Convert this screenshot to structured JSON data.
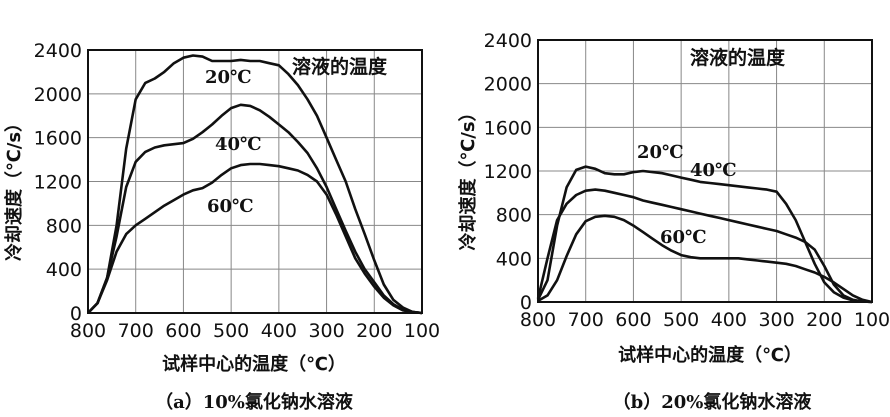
{
  "chart_data": [
    {
      "type": "line",
      "caption": "（a）10%氯化钠水溶液",
      "title": "",
      "legend_title": "溶液的温度",
      "xlabel": "试样中心的温度（℃）",
      "ylabel": "冷却速度（℃/s）",
      "xlim": [
        800,
        100
      ],
      "ylim": [
        0,
        2400
      ],
      "x_ticks": [
        "800",
        "700",
        "600",
        "500",
        "400",
        "300",
        "200",
        "100"
      ],
      "y_ticks": [
        "0",
        "400",
        "800",
        "1200",
        "1600",
        "2000",
        "2400"
      ],
      "grid": true,
      "series": [
        {
          "name": "20℃",
          "x": [
            800,
            780,
            760,
            740,
            720,
            700,
            680,
            660,
            640,
            620,
            600,
            580,
            560,
            540,
            520,
            500,
            480,
            460,
            440,
            420,
            400,
            380,
            360,
            340,
            320,
            300,
            280,
            260,
            240,
            220,
            200,
            180,
            160,
            140,
            120,
            100
          ],
          "y": [
            0,
            90,
            320,
            800,
            1500,
            1950,
            2100,
            2140,
            2200,
            2280,
            2330,
            2350,
            2340,
            2300,
            2300,
            2300,
            2310,
            2300,
            2300,
            2280,
            2260,
            2180,
            2080,
            1950,
            1800,
            1600,
            1400,
            1200,
            950,
            720,
            480,
            260,
            120,
            50,
            10,
            0
          ]
        },
        {
          "name": "40℃",
          "x": [
            800,
            780,
            760,
            740,
            720,
            700,
            680,
            660,
            640,
            620,
            600,
            580,
            560,
            540,
            520,
            500,
            480,
            460,
            440,
            420,
            400,
            380,
            360,
            340,
            320,
            300,
            280,
            260,
            240,
            220,
            200,
            180,
            160,
            140,
            120,
            100
          ],
          "y": [
            0,
            90,
            320,
            700,
            1150,
            1380,
            1470,
            1510,
            1530,
            1540,
            1550,
            1590,
            1650,
            1720,
            1800,
            1870,
            1900,
            1890,
            1850,
            1790,
            1720,
            1650,
            1560,
            1460,
            1320,
            1150,
            950,
            750,
            560,
            400,
            280,
            160,
            80,
            30,
            10,
            0
          ]
        },
        {
          "name": "60℃",
          "x": [
            800,
            780,
            760,
            740,
            720,
            700,
            680,
            660,
            640,
            620,
            600,
            580,
            560,
            540,
            520,
            500,
            480,
            460,
            440,
            420,
            400,
            380,
            360,
            340,
            320,
            300,
            280,
            260,
            240,
            220,
            200,
            180,
            160,
            140,
            120,
            100
          ],
          "y": [
            0,
            90,
            300,
            560,
            720,
            800,
            860,
            920,
            980,
            1030,
            1080,
            1120,
            1140,
            1190,
            1260,
            1320,
            1350,
            1360,
            1360,
            1350,
            1340,
            1320,
            1300,
            1260,
            1200,
            1080,
            900,
            700,
            500,
            360,
            240,
            140,
            70,
            25,
            8,
            0
          ]
        }
      ]
    },
    {
      "type": "line",
      "caption": "（b）20%氯化钠水溶液",
      "title": "",
      "legend_title": "溶液的温度",
      "xlabel": "试样中心的温度（℃）",
      "ylabel": "冷却速度（℃/s）",
      "xlim": [
        800,
        100
      ],
      "ylim": [
        0,
        2400
      ],
      "x_ticks": [
        "800",
        "700",
        "600",
        "500",
        "400",
        "300",
        "200",
        "100"
      ],
      "y_ticks": [
        "0",
        "400",
        "800",
        "1200",
        "1600",
        "2000",
        "2400"
      ],
      "grid": true,
      "series": [
        {
          "name": "20℃",
          "x": [
            800,
            780,
            760,
            740,
            720,
            700,
            680,
            660,
            640,
            620,
            600,
            580,
            560,
            540,
            520,
            500,
            480,
            460,
            440,
            420,
            400,
            380,
            360,
            340,
            320,
            300,
            280,
            260,
            240,
            220,
            200,
            180,
            160,
            140,
            120,
            100
          ],
          "y": [
            20,
            200,
            700,
            1050,
            1210,
            1240,
            1220,
            1180,
            1170,
            1170,
            1190,
            1200,
            1190,
            1180,
            1160,
            1140,
            1120,
            1100,
            1090,
            1080,
            1070,
            1060,
            1050,
            1040,
            1030,
            1010,
            900,
            750,
            550,
            350,
            180,
            90,
            40,
            15,
            5,
            0
          ]
        },
        {
          "name": "40℃",
          "x": [
            800,
            780,
            760,
            740,
            720,
            700,
            680,
            660,
            640,
            620,
            600,
            580,
            560,
            540,
            520,
            500,
            480,
            460,
            440,
            420,
            400,
            380,
            360,
            340,
            320,
            300,
            280,
            260,
            240,
            220,
            200,
            180,
            160,
            140,
            120,
            100
          ],
          "y": [
            30,
            400,
            750,
            900,
            980,
            1020,
            1030,
            1020,
            1000,
            980,
            960,
            930,
            910,
            890,
            870,
            850,
            830,
            810,
            790,
            770,
            750,
            730,
            710,
            690,
            670,
            650,
            620,
            590,
            550,
            480,
            330,
            160,
            60,
            20,
            5,
            0
          ]
        },
        {
          "name": "60℃",
          "x": [
            800,
            780,
            760,
            740,
            720,
            700,
            680,
            660,
            640,
            620,
            600,
            580,
            560,
            540,
            520,
            500,
            480,
            460,
            440,
            420,
            400,
            380,
            360,
            340,
            320,
            300,
            280,
            260,
            240,
            220,
            200,
            180,
            160,
            140,
            120,
            100
          ],
          "y": [
            10,
            60,
            200,
            420,
            620,
            740,
            780,
            790,
            780,
            750,
            700,
            640,
            580,
            520,
            470,
            430,
            410,
            400,
            400,
            400,
            400,
            400,
            390,
            380,
            370,
            360,
            350,
            330,
            300,
            270,
            230,
            180,
            120,
            60,
            20,
            0
          ]
        }
      ]
    }
  ]
}
